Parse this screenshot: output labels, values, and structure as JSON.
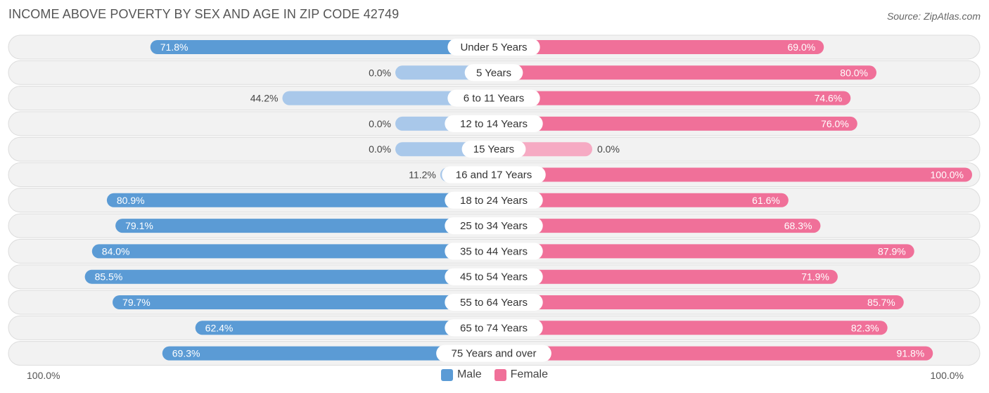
{
  "title": "INCOME ABOVE POVERTY BY SEX AND AGE IN ZIP CODE 42749",
  "source": "Source: ZipAtlas.com",
  "colors": {
    "male": "#5b9bd5",
    "male_light": "#a9c8ea",
    "female": "#f07099",
    "female_light": "#f6aac3"
  },
  "chart_data": {
    "type": "bar",
    "orientation": "horizontal-diverging",
    "categories": [
      "Under 5 Years",
      "5 Years",
      "6 to 11 Years",
      "12 to 14 Years",
      "15 Years",
      "16 and 17 Years",
      "18 to 24 Years",
      "25 to 34 Years",
      "35 to 44 Years",
      "45 to 54 Years",
      "55 to 64 Years",
      "65 to 74 Years",
      "75 Years and over"
    ],
    "series": [
      {
        "name": "Male",
        "values": [
          71.8,
          0.0,
          44.2,
          0.0,
          0.0,
          11.2,
          80.9,
          79.1,
          84.0,
          85.5,
          79.7,
          62.4,
          69.3
        ]
      },
      {
        "name": "Female",
        "values": [
          69.0,
          80.0,
          74.6,
          76.0,
          0.0,
          100.0,
          61.6,
          68.3,
          87.9,
          71.9,
          85.7,
          82.3,
          91.8
        ]
      }
    ],
    "value_labels": {
      "male": [
        "71.8%",
        "0.0%",
        "44.2%",
        "0.0%",
        "0.0%",
        "11.2%",
        "80.9%",
        "79.1%",
        "84.0%",
        "85.5%",
        "79.7%",
        "62.4%",
        "69.3%"
      ],
      "female": [
        "69.0%",
        "80.0%",
        "74.6%",
        "76.0%",
        "0.0%",
        "100.0%",
        "61.6%",
        "68.3%",
        "87.9%",
        "71.9%",
        "85.7%",
        "82.3%",
        "91.8%"
      ]
    },
    "xlim": [
      0,
      100
    ],
    "axis_left_label": "100.0%",
    "axis_right_label": "100.0%",
    "legend": {
      "position": "bottom-center",
      "entries": [
        "Male",
        "Female"
      ]
    }
  }
}
